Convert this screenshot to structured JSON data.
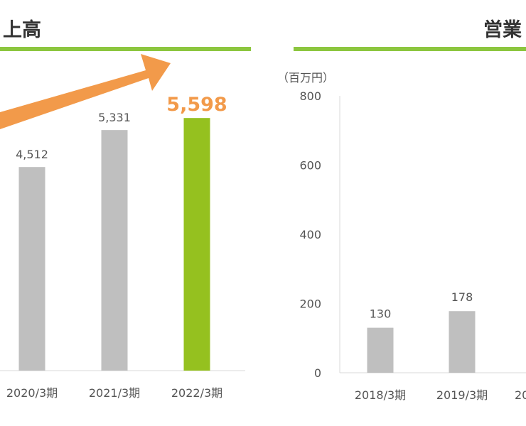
{
  "left_panel": {
    "title": "上高"
  },
  "right_panel": {
    "title": "営業",
    "unit": "（百万円）"
  },
  "colors": {
    "bar": "#bfbfbf",
    "highlight_bar": "#95c11f",
    "highlight_label": "#f29a4a",
    "arrow": "#f29a4a",
    "rule": "#8cc63f",
    "axis": "#d9d9d9",
    "text": "#555555"
  },
  "chart_data": [
    {
      "type": "bar",
      "title": "上高",
      "categories": [
        "2020/3期",
        "2021/3期",
        "2022/3期"
      ],
      "values": [
        4512,
        5331,
        5598
      ],
      "value_labels": [
        "4,512",
        "5,331",
        "5,598"
      ],
      "highlight_index": 2,
      "annotation": "orange upward-trend arrow pointing to the latest bar",
      "note": "chart is cropped on the left; earlier categories not visible"
    },
    {
      "type": "bar",
      "title": "営業",
      "ylabel": "（百万円）",
      "ylim": [
        0,
        800
      ],
      "yticks": [
        0,
        200,
        400,
        600,
        800
      ],
      "grid": false,
      "categories": [
        "2018/3期",
        "2019/3期",
        "20"
      ],
      "values": [
        130,
        178,
        null
      ],
      "value_labels": [
        "130",
        "178",
        ""
      ],
      "note": "chart is cropped on the right; third category label partially visible"
    }
  ]
}
